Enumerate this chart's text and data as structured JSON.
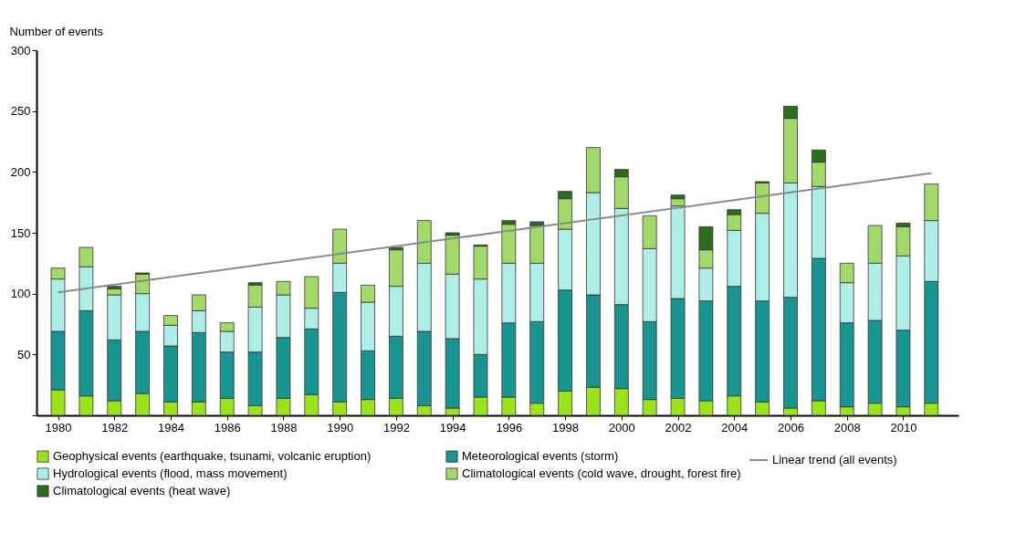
{
  "chart_data": {
    "type": "bar",
    "stacked": true,
    "ylabel": "Number of events",
    "legend": "bottom",
    "x": [
      1980,
      1981,
      1982,
      1983,
      1984,
      1985,
      1986,
      1987,
      1988,
      1989,
      1990,
      1991,
      1992,
      1993,
      1994,
      1995,
      1996,
      1997,
      1998,
      1999,
      2000,
      2001,
      2002,
      2003,
      2004,
      2005,
      2006,
      2007,
      2008,
      2009,
      2010,
      2011
    ],
    "xlim": [
      1979.4,
      2011.8
    ],
    "xticks": [
      1980,
      1982,
      1984,
      1986,
      1988,
      1990,
      1992,
      1994,
      1996,
      1998,
      2000,
      2002,
      2004,
      2006,
      2008,
      2010
    ],
    "ylim": [
      0,
      300
    ],
    "yticks": [
      {
        "value": 0,
        "label": null
      },
      50,
      100,
      150,
      200,
      250,
      300
    ],
    "series": [
      {
        "name": "Geophysical events (earthquake, tsunami, volcanic eruption)",
        "color": "#9be31c",
        "values": [
          21,
          16,
          12,
          18,
          11,
          11,
          14,
          8,
          14,
          17,
          11,
          13,
          14,
          8,
          6,
          15,
          15,
          10,
          20,
          23,
          22,
          13,
          14,
          12,
          16,
          11,
          6,
          12,
          7,
          10,
          7,
          10
        ]
      },
      {
        "name": "Meteorological events (storm)",
        "color": "#1a9490",
        "values": [
          48,
          70,
          50,
          51,
          46,
          57,
          38,
          44,
          50,
          54,
          90,
          40,
          51,
          61,
          57,
          35,
          61,
          67,
          83,
          76,
          69,
          64,
          82,
          82,
          90,
          83,
          91,
          117,
          69,
          68,
          63,
          100
        ]
      },
      {
        "name": "Hydrological events (flood, mass movement)",
        "color": "#aeeee6",
        "values": [
          43,
          36,
          37,
          31,
          17,
          18,
          17,
          37,
          35,
          17,
          24,
          40,
          41,
          56,
          53,
          62,
          49,
          48,
          50,
          84,
          79,
          60,
          76,
          27,
          46,
          72,
          94,
          59,
          33,
          47,
          61,
          50
        ]
      },
      {
        "name": "Climatological events (cold wave, drought, forest fire)",
        "color": "#a3d86a",
        "values": [
          9,
          16,
          5,
          16,
          8,
          13,
          7,
          18,
          11,
          26,
          28,
          14,
          30,
          35,
          32,
          27,
          32,
          31,
          25,
          37,
          26,
          27,
          6,
          15,
          13,
          25,
          53,
          20,
          16,
          31,
          24,
          30
        ]
      },
      {
        "name": "Climatological events (heat wave)",
        "color": "#2f6b1e",
        "values": [
          null,
          null,
          2,
          1,
          null,
          null,
          null,
          2,
          null,
          null,
          null,
          null,
          2,
          null,
          2,
          1,
          3,
          3,
          6,
          null,
          6,
          null,
          3,
          19,
          4,
          1,
          10,
          10,
          null,
          null,
          3,
          null
        ]
      },
      {
        "name": "Linear trend (all events)",
        "type": "line",
        "color": "#8a8a8a",
        "x": [
          1980,
          2011
        ],
        "values": [
          101,
          199
        ]
      }
    ]
  }
}
